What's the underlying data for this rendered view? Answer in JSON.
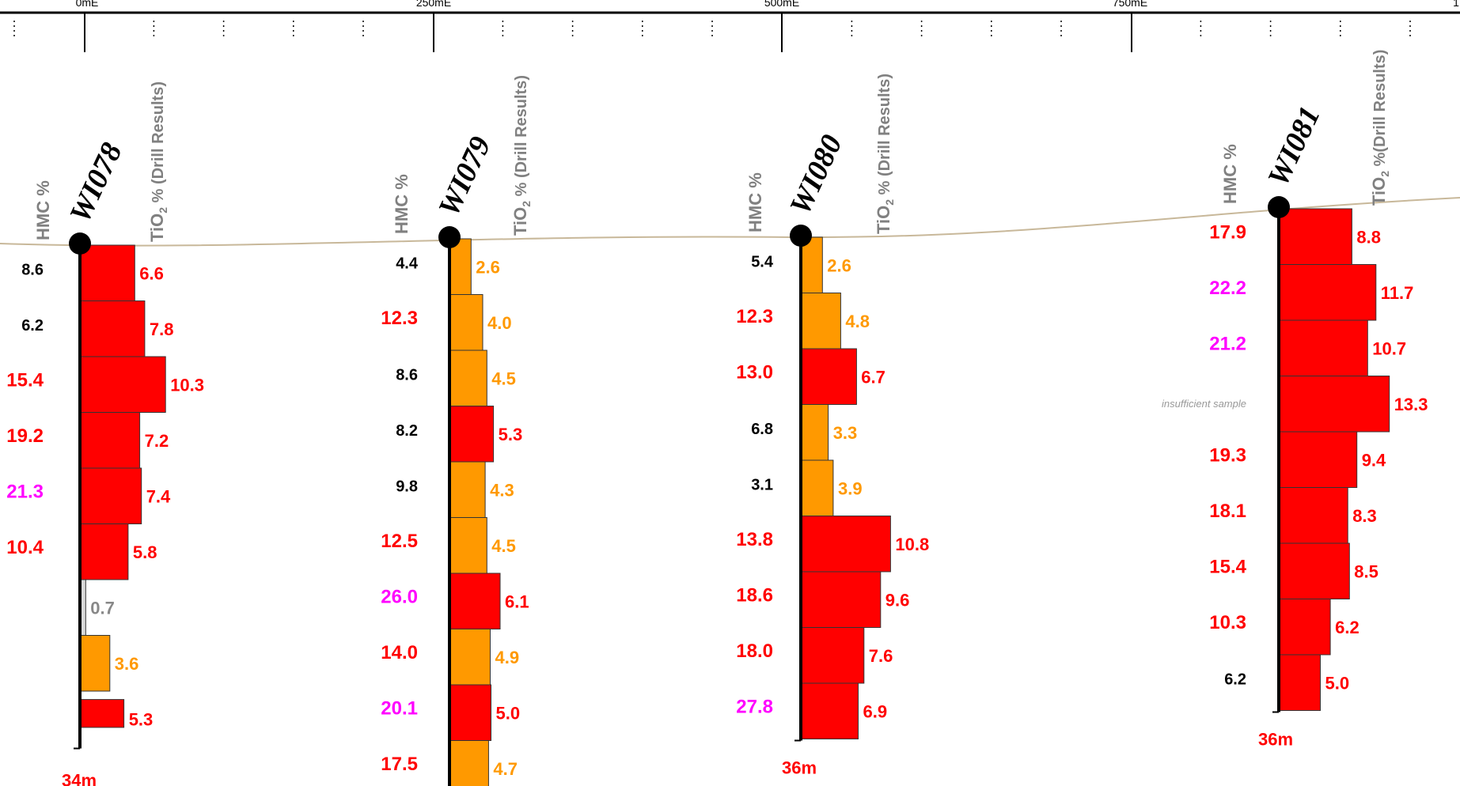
{
  "scale": {
    "labels": [
      "0mE",
      "250mE",
      "500mE",
      "750mE",
      "1"
    ]
  },
  "legend": {
    "insufficient_note": "insufficient sample"
  },
  "colors": {
    "high": "#ff0000",
    "medium": "#ff9900",
    "low": "#d9d9d9",
    "hmc_high": "#ff0000",
    "hmc_highest": "#ff00ff",
    "hmc_normal": "#000000",
    "header": "#808080",
    "ground": "#c8b89a"
  },
  "holes": [
    {
      "id": "WI078",
      "hmc_header": "HMC %",
      "tio2_header": "TiO2 % (Drill Results)",
      "tio2_sub": "2",
      "depth": "34m",
      "intervals": [
        {
          "hmc": "8.6",
          "hmc_class": "normal",
          "tio2": 6.6,
          "tio2_label": "6.6",
          "class": "high"
        },
        {
          "hmc": "6.2",
          "hmc_class": "normal",
          "tio2": 7.8,
          "tio2_label": "7.8",
          "class": "high"
        },
        {
          "hmc": "15.4",
          "hmc_class": "high",
          "tio2": 10.3,
          "tio2_label": "10.3",
          "class": "high"
        },
        {
          "hmc": "19.2",
          "hmc_class": "high",
          "tio2": 7.2,
          "tio2_label": "7.2",
          "class": "high"
        },
        {
          "hmc": "21.3",
          "hmc_class": "highest",
          "tio2": 7.4,
          "tio2_label": "7.4",
          "class": "high"
        },
        {
          "hmc": "10.4",
          "hmc_class": "high",
          "tio2": 5.8,
          "tio2_label": "5.8",
          "class": "high"
        },
        {
          "hmc": "",
          "hmc_class": "normal",
          "tio2": 0.7,
          "tio2_label": "0.7",
          "class": "low"
        },
        {
          "hmc": "",
          "hmc_class": "normal",
          "tio2": 3.6,
          "tio2_label": "3.6",
          "class": "medium"
        },
        {
          "hmc": "",
          "hmc_class": "normal",
          "tio2": 5.3,
          "tio2_label": "5.3",
          "class": "high",
          "half": true
        }
      ]
    },
    {
      "id": "WI079",
      "hmc_header": "HMC %",
      "tio2_header": "TiO2 % (Drill Results)",
      "tio2_sub": "2",
      "depth": "",
      "intervals": [
        {
          "hmc": "4.4",
          "hmc_class": "normal",
          "tio2": 2.6,
          "tio2_label": "2.6",
          "class": "medium"
        },
        {
          "hmc": "12.3",
          "hmc_class": "high",
          "tio2": 4.0,
          "tio2_label": "4.0",
          "class": "medium"
        },
        {
          "hmc": "8.6",
          "hmc_class": "normal",
          "tio2": 4.5,
          "tio2_label": "4.5",
          "class": "medium"
        },
        {
          "hmc": "8.2",
          "hmc_class": "normal",
          "tio2": 5.3,
          "tio2_label": "5.3",
          "class": "high"
        },
        {
          "hmc": "9.8",
          "hmc_class": "normal",
          "tio2": 4.3,
          "tio2_label": "4.3",
          "class": "medium"
        },
        {
          "hmc": "12.5",
          "hmc_class": "high",
          "tio2": 4.5,
          "tio2_label": "4.5",
          "class": "medium"
        },
        {
          "hmc": "26.0",
          "hmc_class": "highest",
          "tio2": 6.1,
          "tio2_label": "6.1",
          "class": "high"
        },
        {
          "hmc": "14.0",
          "hmc_class": "high",
          "tio2": 4.9,
          "tio2_label": "4.9",
          "class": "medium"
        },
        {
          "hmc": "20.1",
          "hmc_class": "highest",
          "tio2": 5.0,
          "tio2_label": "5.0",
          "class": "high"
        },
        {
          "hmc": "17.5",
          "hmc_class": "high",
          "tio2": 4.7,
          "tio2_label": "4.7",
          "class": "medium"
        }
      ]
    },
    {
      "id": "WI080",
      "hmc_header": "HMC %",
      "tio2_header": "TiO2 % (Drill Results)",
      "tio2_sub": "2",
      "depth": "36m",
      "intervals": [
        {
          "hmc": "5.4",
          "hmc_class": "normal",
          "tio2": 2.6,
          "tio2_label": "2.6",
          "class": "medium"
        },
        {
          "hmc": "12.3",
          "hmc_class": "high",
          "tio2": 4.8,
          "tio2_label": "4.8",
          "class": "medium"
        },
        {
          "hmc": "13.0",
          "hmc_class": "high",
          "tio2": 6.7,
          "tio2_label": "6.7",
          "class": "high"
        },
        {
          "hmc": "6.8",
          "hmc_class": "normal",
          "tio2": 3.3,
          "tio2_label": "3.3",
          "class": "medium"
        },
        {
          "hmc": "3.1",
          "hmc_class": "normal",
          "tio2": 3.9,
          "tio2_label": "3.9",
          "class": "medium"
        },
        {
          "hmc": "13.8",
          "hmc_class": "high",
          "tio2": 10.8,
          "tio2_label": "10.8",
          "class": "high"
        },
        {
          "hmc": "18.6",
          "hmc_class": "high",
          "tio2": 9.6,
          "tio2_label": "9.6",
          "class": "high"
        },
        {
          "hmc": "18.0",
          "hmc_class": "high",
          "tio2": 7.6,
          "tio2_label": "7.6",
          "class": "high"
        },
        {
          "hmc": "27.8",
          "hmc_class": "highest",
          "tio2": 6.9,
          "tio2_label": "6.9",
          "class": "high"
        }
      ]
    },
    {
      "id": "WI081",
      "hmc_header": "HMC %",
      "tio2_header": "TiO2 %(Drill Results)",
      "tio2_sub": "2",
      "depth": "36m",
      "intervals": [
        {
          "hmc": "17.9",
          "hmc_class": "high",
          "tio2": 8.8,
          "tio2_label": "8.8",
          "class": "high"
        },
        {
          "hmc": "22.2",
          "hmc_class": "highest",
          "tio2": 11.7,
          "tio2_label": "11.7",
          "class": "high"
        },
        {
          "hmc": "21.2",
          "hmc_class": "highest",
          "tio2": 10.7,
          "tio2_label": "10.7",
          "class": "high"
        },
        {
          "hmc": "insufficient sample",
          "hmc_class": "note",
          "tio2": 13.3,
          "tio2_label": "13.3",
          "class": "high"
        },
        {
          "hmc": "19.3",
          "hmc_class": "high",
          "tio2": 9.4,
          "tio2_label": "9.4",
          "class": "high"
        },
        {
          "hmc": "18.1",
          "hmc_class": "high",
          "tio2": 8.3,
          "tio2_label": "8.3",
          "class": "high"
        },
        {
          "hmc": "15.4",
          "hmc_class": "high",
          "tio2": 8.5,
          "tio2_label": "8.5",
          "class": "high"
        },
        {
          "hmc": "10.3",
          "hmc_class": "high",
          "tio2": 6.2,
          "tio2_label": "6.2",
          "class": "high"
        },
        {
          "hmc": "6.2",
          "hmc_class": "normal",
          "tio2": 5.0,
          "tio2_label": "5.0",
          "class": "high"
        }
      ]
    }
  ]
}
